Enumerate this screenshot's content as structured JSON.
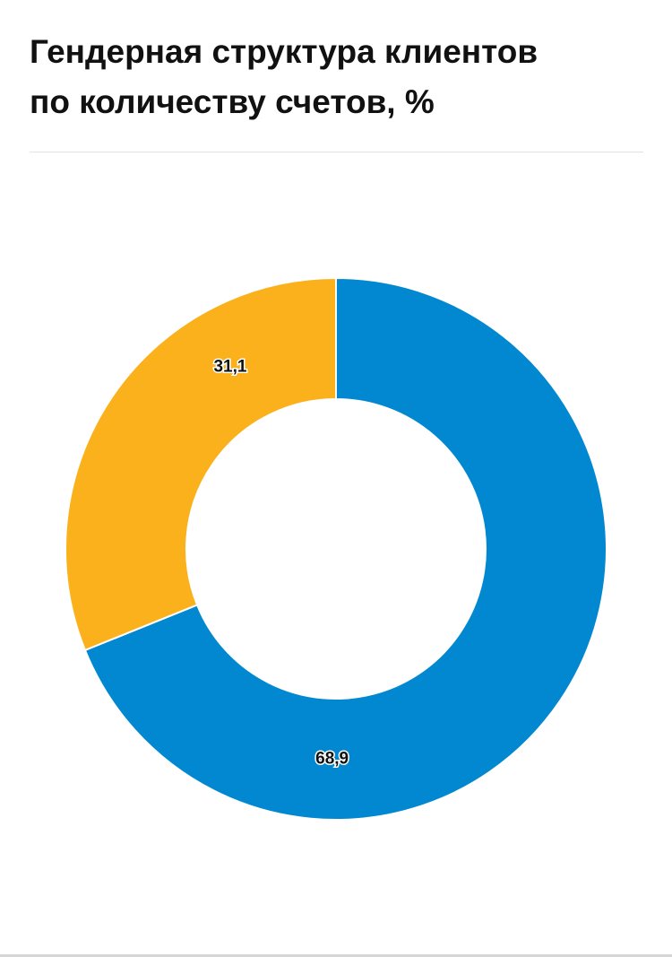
{
  "header": {
    "title": "Гендерная структура клиентов\nпо количеству счетов, %"
  },
  "chart_data": {
    "type": "pie",
    "variant": "donut",
    "title": "Гендерная структура клиентов по количеству счетов, %",
    "slices": [
      {
        "value": 68.9,
        "label": "68,9",
        "color": "#0288D1"
      },
      {
        "value": 31.1,
        "label": "31,1",
        "color": "#FBB11B"
      }
    ],
    "legend": "none"
  }
}
